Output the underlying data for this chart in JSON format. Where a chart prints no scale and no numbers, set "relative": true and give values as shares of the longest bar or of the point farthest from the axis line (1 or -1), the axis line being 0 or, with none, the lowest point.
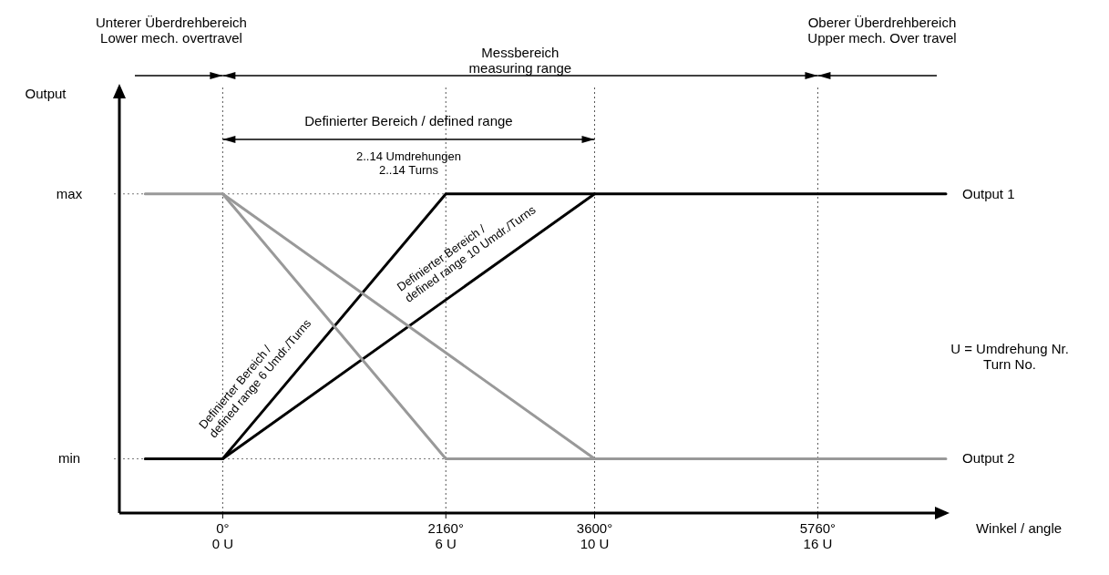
{
  "chart_data": {
    "type": "line",
    "xlabel": "Winkel / angle",
    "xlim": [
      -1000,
      7000
    ],
    "relative": true,
    "xticks": [
      {
        "value": 0,
        "label": "0°"
      },
      {
        "value": 2160,
        "label": "2160°"
      },
      {
        "value": 3600,
        "label": "3600°"
      },
      {
        "value": 5760,
        "label": "5760°"
      }
    ],
    "grid": false,
    "line_style": "solid",
    "series": [
      {
        "name": "Output 1",
        "color": "#000000",
        "x": [
          -750,
          0,
          2160,
          7000
        ],
        "values": [
          0.17,
          0.17,
          1,
          1
        ]
      },
      {
        "color": "#000000",
        "x": [
          0,
          3600
        ],
        "values": [
          0.17,
          1
        ]
      },
      {
        "name": "Output 2",
        "color": "#999999",
        "x": [
          -750,
          0,
          2160,
          7000
        ],
        "values": [
          1,
          1,
          0.17,
          0.17
        ]
      },
      {
        "color": "#999999",
        "x": [
          0,
          3600
        ],
        "values": [
          1,
          0.17
        ]
      }
    ],
    "ref_lines": [
      {
        "axis": "x",
        "value": 0,
        "line_style": "dotted"
      },
      {
        "axis": "x",
        "value": 2160,
        "line_style": "dotted"
      },
      {
        "axis": "x",
        "value": 3600,
        "line_style": "dotted"
      },
      {
        "axis": "x",
        "value": 5760,
        "line_style": "dotted"
      },
      {
        "axis": "y",
        "value": 0.17,
        "label": "min",
        "line_style": "dotted"
      },
      {
        "axis": "y",
        "value": 1,
        "label": "max",
        "line_style": "dotted"
      }
    ],
    "annotations": [
      "Unterer Überdrehbereich\nLower mech. overtravel",
      "Messbereich\nmeasuring range",
      "Oberer Überdrehbereich\nUpper mech. Over travel",
      "Definierter Bereich / defined range",
      "2..14 Umdrehungen\n2..14 Turns",
      "Definierter Bereich /\ndefined range 6 Umdr./Turns",
      "Definierter Bereich /\ndefined range 10 Umdr./Turns",
      "U = Umdrehung Nr.\nTurn No.",
      "Output",
      "0 U",
      "6 U",
      "10 U",
      "16 U"
    ]
  }
}
